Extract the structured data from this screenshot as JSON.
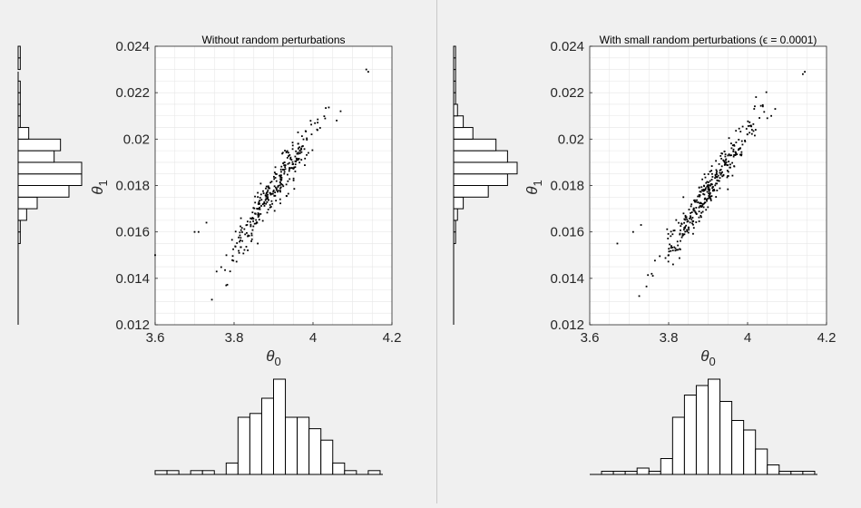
{
  "window": {
    "background": "#f0f0f0",
    "divider_color": "#c8c8c8"
  },
  "chart_data": [
    {
      "type": "scatter",
      "title": "Without random perturbations",
      "xlabel": "θ0",
      "ylabel": "θ1",
      "xlim": [
        3.6,
        4.2
      ],
      "ylim": [
        0.012,
        0.024
      ],
      "xticks": [
        "3.6",
        "3.8",
        "4",
        "4.2"
      ],
      "yticks": [
        "0.012",
        "0.014",
        "0.016",
        "0.018",
        "0.02",
        "0.022",
        "0.024"
      ],
      "grid": true,
      "point_color": "#000000",
      "outliers": [
        {
          "x": 3.6,
          "y": 0.015
        },
        {
          "x": 3.7,
          "y": 0.016
        },
        {
          "x": 3.71,
          "y": 0.016
        },
        {
          "x": 3.73,
          "y": 0.0164
        },
        {
          "x": 3.79,
          "y": 0.0143
        },
        {
          "x": 3.86,
          "y": 0.0155
        },
        {
          "x": 4.07,
          "y": 0.0212
        },
        {
          "x": 4.06,
          "y": 0.0208
        },
        {
          "x": 4.14,
          "y": 0.0229
        },
        {
          "x": 4.135,
          "y": 0.023
        }
      ],
      "cluster": {
        "n": 300,
        "mean_x": 3.9,
        "sd_x": 0.06,
        "slope": 0.025,
        "intercept": -0.0797,
        "sd_y": 0.0004
      },
      "hist_x": {
        "range": [
          3.6,
          4.2
        ],
        "counts": [
          1,
          1,
          0,
          1,
          1,
          0,
          3,
          15,
          16,
          20,
          25,
          15,
          15,
          12,
          9,
          3,
          1,
          0,
          1,
          0
        ]
      },
      "hist_y": {
        "range": [
          0.012,
          0.024
        ],
        "counts": [
          0,
          0,
          0,
          0,
          0,
          0,
          0,
          1,
          1,
          4,
          9,
          24,
          30,
          30,
          17,
          20,
          5,
          1,
          1,
          1,
          1,
          0,
          1,
          1
        ]
      }
    },
    {
      "type": "scatter",
      "title": "With small random perturbations (ϵ = 0.0001)",
      "xlabel": "θ0",
      "ylabel": "θ1",
      "xlim": [
        3.6,
        4.2
      ],
      "ylim": [
        0.012,
        0.024
      ],
      "xticks": [
        "3.6",
        "3.8",
        "4",
        "4.2"
      ],
      "yticks": [
        "0.012",
        "0.014",
        "0.016",
        "0.018",
        "0.02",
        "0.022",
        "0.024"
      ],
      "grid": true,
      "point_color": "#000000",
      "outliers": [
        {
          "x": 3.67,
          "y": 0.0155
        },
        {
          "x": 3.71,
          "y": 0.016
        },
        {
          "x": 3.73,
          "y": 0.0163
        },
        {
          "x": 3.8,
          "y": 0.015
        },
        {
          "x": 3.81,
          "y": 0.0159
        },
        {
          "x": 3.84,
          "y": 0.0159
        },
        {
          "x": 4.05,
          "y": 0.0209
        },
        {
          "x": 4.06,
          "y": 0.021
        },
        {
          "x": 4.07,
          "y": 0.0213
        },
        {
          "x": 4.14,
          "y": 0.0228
        },
        {
          "x": 4.145,
          "y": 0.0229
        }
      ],
      "cluster": {
        "n": 340,
        "mean_x": 3.9,
        "sd_x": 0.06,
        "slope": 0.025,
        "intercept": -0.0797,
        "sd_y": 0.0004
      },
      "hist_x": {
        "range": [
          3.6,
          4.2
        ],
        "counts": [
          0,
          1,
          1,
          1,
          2,
          1,
          5,
          18,
          25,
          28,
          30,
          23,
          17,
          14,
          8,
          3,
          1,
          1,
          1,
          0
        ]
      },
      "hist_y": {
        "range": [
          0.012,
          0.024
        ],
        "counts": [
          0,
          0,
          0,
          0,
          0,
          0,
          0,
          1,
          1,
          2,
          5,
          18,
          28,
          33,
          28,
          22,
          10,
          5,
          2,
          1,
          1,
          1,
          1,
          1
        ]
      }
    }
  ]
}
